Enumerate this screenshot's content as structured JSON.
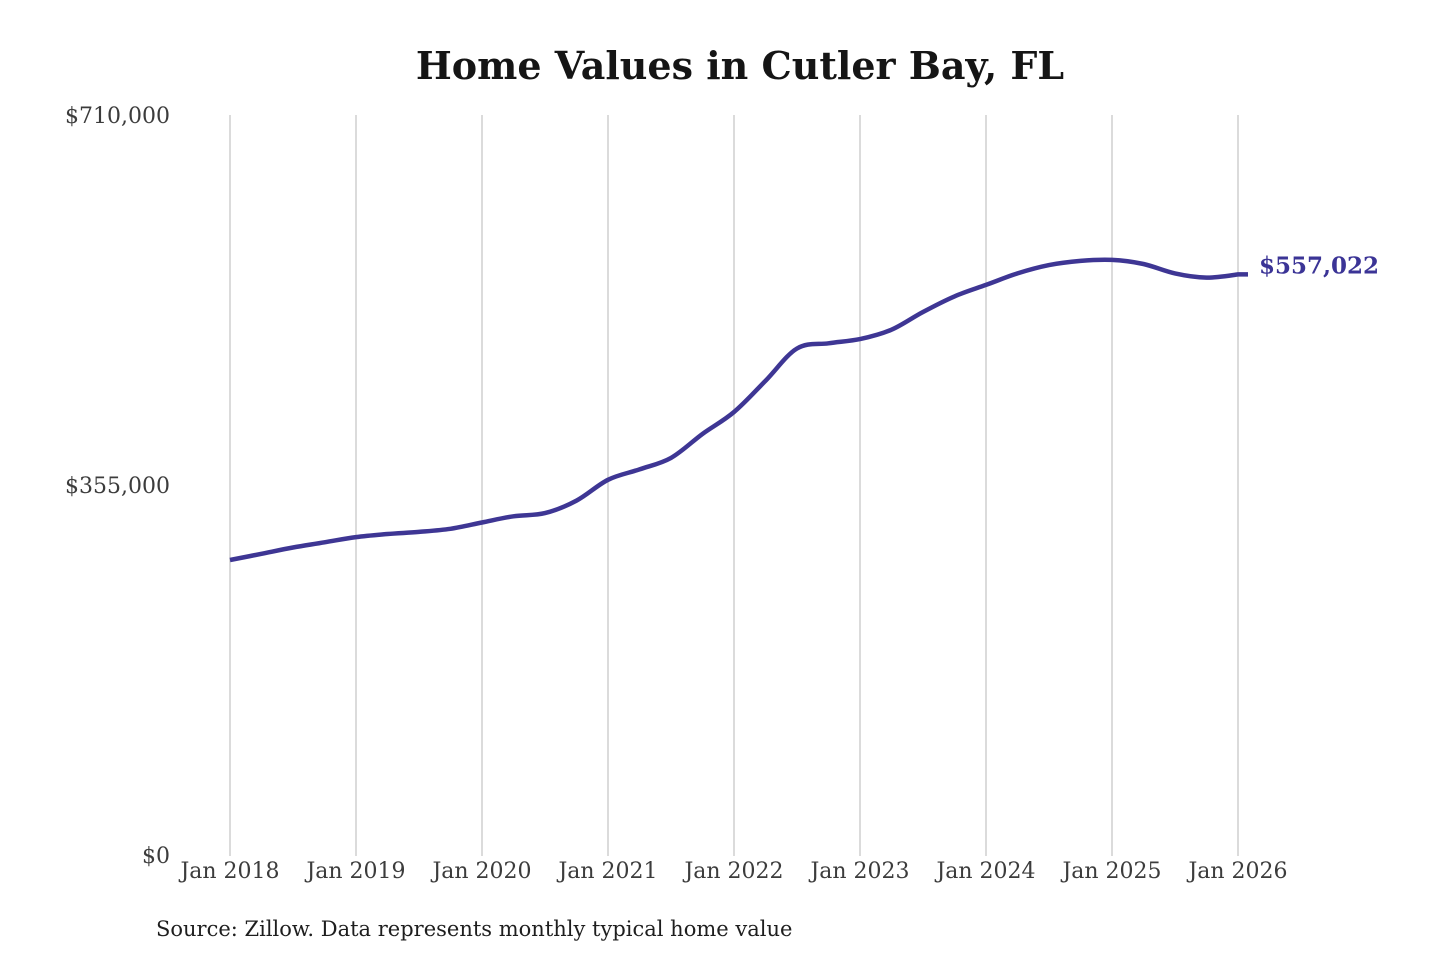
{
  "title": "Home Values in Cutler Bay, FL",
  "source_note": "Source: Zillow. Data represents monthly typical home value",
  "colors": {
    "line": "#3e3694",
    "grid": "#cfcfcf",
    "tick_text": "#3c3c3c",
    "title_text": "#151515",
    "annotation_text": "#3b3496",
    "source_text": "#1e1e1e",
    "background": "#ffffff"
  },
  "chart_data": {
    "type": "line",
    "title": "Home Values in Cutler Bay, FL",
    "series_name": "Monthly typical home value",
    "unit": "USD",
    "xlabel": "",
    "ylabel": "",
    "ylim": [
      0,
      710000
    ],
    "grid": "vertical",
    "legend": "none",
    "y_tick_labels": [
      "$710,000",
      "$355,000",
      "$0"
    ],
    "y_tick_values": [
      710000,
      355000,
      0
    ],
    "x_tick_labels": [
      "Jan 2018",
      "Jan 2019",
      "Jan 2020",
      "Jan 2021",
      "Jan 2022",
      "Jan 2023",
      "Jan 2024",
      "Jan 2025",
      "Jan 2026"
    ],
    "x": [
      "2018-01",
      "2018-04",
      "2018-07",
      "2018-10",
      "2019-01",
      "2019-04",
      "2019-07",
      "2019-10",
      "2020-01",
      "2020-04",
      "2020-07",
      "2020-10",
      "2021-01",
      "2021-04",
      "2021-07",
      "2021-10",
      "2022-01",
      "2022-04",
      "2022-07",
      "2022-10",
      "2023-01",
      "2023-04",
      "2023-07",
      "2023-10",
      "2024-01",
      "2024-04",
      "2024-07",
      "2024-10",
      "2025-01",
      "2025-04",
      "2025-07",
      "2025-10",
      "2026-01"
    ],
    "values": [
      283000,
      289000,
      295000,
      300000,
      305000,
      308000,
      310000,
      313000,
      319000,
      325000,
      328000,
      340000,
      360000,
      370000,
      381000,
      404000,
      425000,
      455000,
      486000,
      491000,
      495000,
      504000,
      521000,
      536000,
      547000,
      558000,
      566000,
      570000,
      571000,
      567000,
      558000,
      554000,
      557022
    ],
    "annotation": "$557,022",
    "final_value": 557022
  }
}
